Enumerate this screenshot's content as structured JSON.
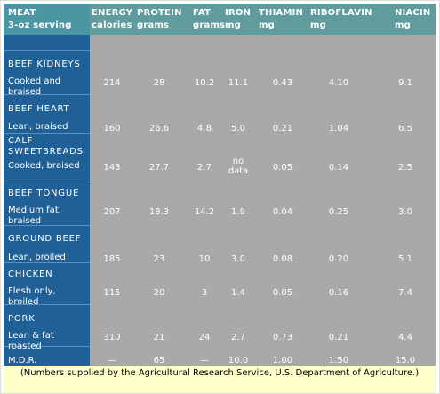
{
  "colors": {
    "label_column": "#1f6196",
    "data_panel": "#a9a9a9",
    "header_left": "#4c96a4",
    "header_right": "#609b9e",
    "footnote_bg": "#ffffcc"
  },
  "headers": [
    {
      "line1": "MEAT",
      "line2": "3-oz serving"
    },
    {
      "line1": "ENERGY",
      "line2": "calories"
    },
    {
      "line1": "PROTEIN",
      "line2": "grams"
    },
    {
      "line1": "FAT",
      "line2": "grams"
    },
    {
      "line1": "IRON",
      "line2": "mg"
    },
    {
      "line1": "THIAMIN",
      "line2": "mg"
    },
    {
      "line1": "RIBOFLAVIN",
      "line2": "mg"
    },
    {
      "line1": "NIACIN",
      "line2": "mg"
    }
  ],
  "categories": [
    "BEEF KIDNEYS",
    "BEEF HEART",
    "CALF SWEETBREADS",
    "BEEF TONGUE",
    "GROUND BEEF",
    "CHICKEN",
    "PORK"
  ],
  "rows": [
    {
      "label": "Cooked and braised",
      "values": [
        "214",
        "28",
        "10.2",
        "11.1",
        "0.43",
        "4.10",
        "9.1"
      ]
    },
    {
      "label": "Lean, braised",
      "values": [
        "160",
        "26.6",
        "4.8",
        "5.0",
        "0.21",
        "1.04",
        "6.5"
      ]
    },
    {
      "label": "Cooked, braised",
      "values": [
        "143",
        "27.7",
        "2.7",
        "no data",
        "0.05",
        "0.14",
        "2.5"
      ]
    },
    {
      "label": "Medium fat, braised",
      "values": [
        "207",
        "18.3",
        "14.2",
        "1.9",
        "0.04",
        "0.25",
        "3.0"
      ]
    },
    {
      "label": "Lean, broiled",
      "values": [
        "185",
        "23",
        "10",
        "3.0",
        "0.08",
        "0.20",
        "5.1"
      ]
    },
    {
      "label": "Flesh only, broiled",
      "values": [
        "115",
        "20",
        "3",
        "1.4",
        "0.05",
        "0.16",
        "7.4"
      ]
    },
    {
      "label": "Lean & fat roasted",
      "values": [
        "310",
        "21",
        "24",
        "2.7",
        "0.73",
        "0.21",
        "4.4"
      ]
    }
  ],
  "mdr": {
    "label": "M.D.R.",
    "values": [
      "—",
      "65",
      "—",
      "10.0",
      "1.00",
      "1.50",
      "15.0"
    ]
  },
  "footnote": "(Numbers supplied by the Agricultural Research Service, U.S. Department of Agriculture.)"
}
